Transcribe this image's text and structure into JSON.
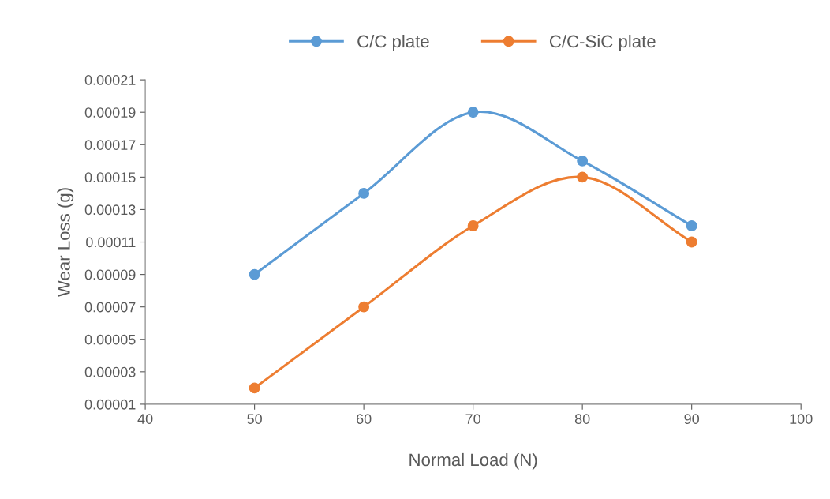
{
  "chart_data": {
    "type": "line",
    "xlabel": "Normal Load (N)",
    "ylabel": "Wear Loss (g)",
    "x": [
      50,
      60,
      70,
      80,
      90
    ],
    "series": [
      {
        "name": "C/C plate",
        "color": "#5b9bd5",
        "values": [
          9e-05,
          0.00014,
          0.00019,
          0.00016,
          0.00012
        ]
      },
      {
        "name": "C/C-SiC plate",
        "color": "#ed7d31",
        "values": [
          2e-05,
          7e-05,
          0.00012,
          0.00015,
          0.00011
        ]
      }
    ],
    "xlim": [
      40,
      100
    ],
    "xticks": [
      40,
      50,
      60,
      70,
      80,
      90,
      100
    ],
    "ylim": [
      1e-05,
      0.00021
    ],
    "yticks": [
      {
        "value": 1e-05,
        "label": "0.00001"
      },
      {
        "value": 3e-05,
        "label": "0.00003"
      },
      {
        "value": 5e-05,
        "label": "0.00005"
      },
      {
        "value": 7e-05,
        "label": "0.00007"
      },
      {
        "value": 9e-05,
        "label": "0.00009"
      },
      {
        "value": 0.00011,
        "label": "0.00011"
      },
      {
        "value": 0.00013,
        "label": "0.00013"
      },
      {
        "value": 0.00015,
        "label": "0.00015"
      },
      {
        "value": 0.00017,
        "label": "0.00017"
      },
      {
        "value": 0.00019,
        "label": "0.00019"
      },
      {
        "value": 0.00021,
        "label": "0.00021"
      }
    ],
    "grid": false,
    "legend": "top",
    "marker": "circle",
    "line_style": "solid"
  }
}
